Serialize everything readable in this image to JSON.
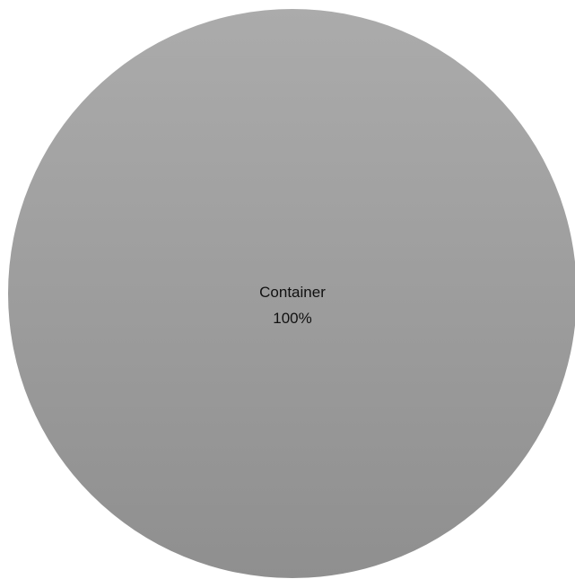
{
  "chart_data": {
    "type": "pie",
    "title": "",
    "slices": [
      {
        "name": "Container",
        "value": 100,
        "percent_label": "100%",
        "color_top": "#ababab",
        "color_bottom": "#8f8f8f"
      }
    ]
  }
}
